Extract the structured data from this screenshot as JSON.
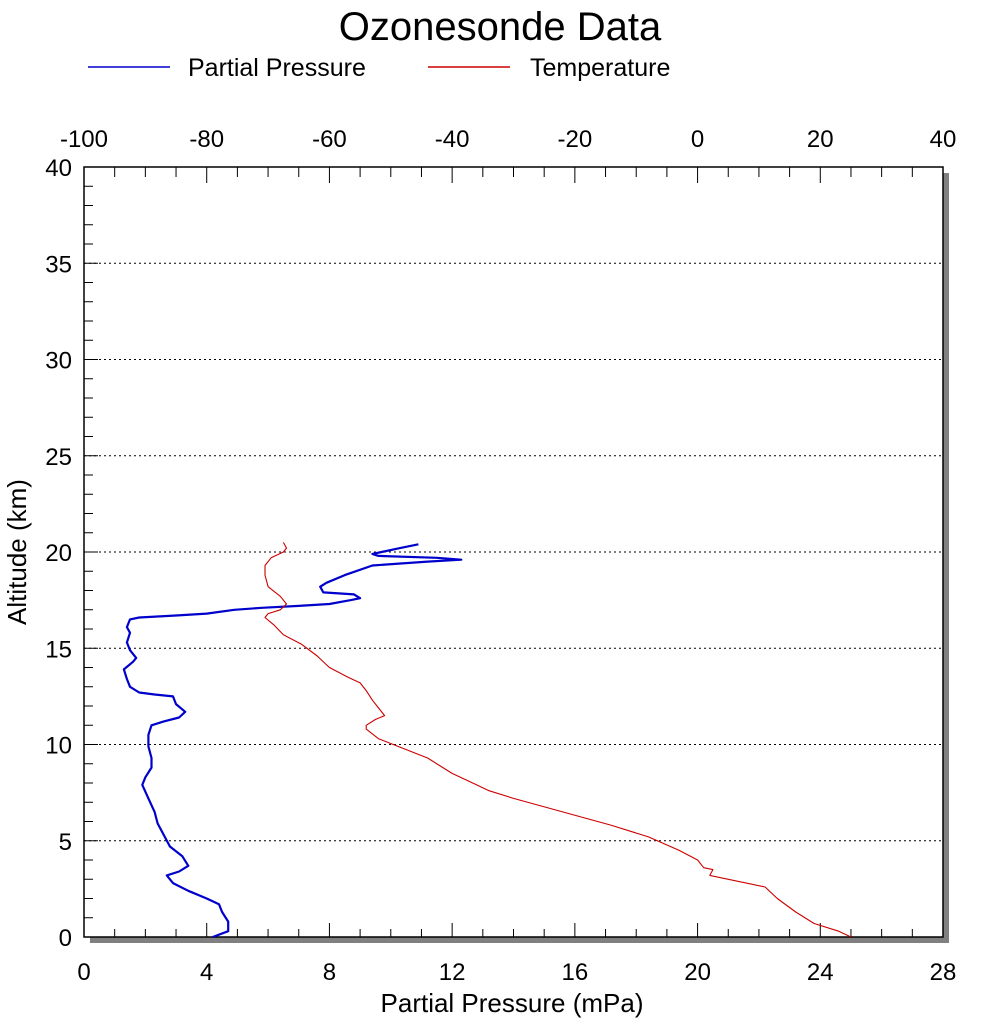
{
  "chart_data": {
    "type": "line",
    "title": "Ozonesonde Data",
    "legend": {
      "placement": "top",
      "entries": [
        {
          "label": "Partial Pressure",
          "color": "#0000cc"
        },
        {
          "label": "Temperature",
          "color": "#cc0000"
        }
      ]
    },
    "xlabel": "Partial Pressure (mPa)",
    "ylabel": "Altitude (km)",
    "x_bottom": {
      "range": [
        0,
        28
      ],
      "ticks": [
        "0",
        "4",
        "8",
        "12",
        "16",
        "20",
        "24",
        "28"
      ]
    },
    "x_top": {
      "range": [
        -100,
        40
      ],
      "ticks": [
        "-100",
        "-80",
        "-60",
        "-40",
        "-20",
        "0",
        "20",
        "40"
      ]
    },
    "y": {
      "range": [
        0,
        40
      ],
      "ticks": [
        "0",
        "5",
        "10",
        "15",
        "20",
        "25",
        "30",
        "35",
        "40"
      ]
    },
    "grid": {
      "horizontal": true,
      "style": "dotted",
      "values": [
        5,
        10,
        15,
        20,
        25,
        30,
        35
      ]
    },
    "series": [
      {
        "name": "Partial Pressure",
        "axis": "bottom",
        "color": "#0000cc",
        "points": [
          [
            4.2,
            0.0
          ],
          [
            4.7,
            0.3
          ],
          [
            4.7,
            0.8
          ],
          [
            4.5,
            1.3
          ],
          [
            4.4,
            1.7
          ],
          [
            4.0,
            2.0
          ],
          [
            3.4,
            2.4
          ],
          [
            2.9,
            2.8
          ],
          [
            2.7,
            3.2
          ],
          [
            3.1,
            3.4
          ],
          [
            3.4,
            3.7
          ],
          [
            3.2,
            4.2
          ],
          [
            2.8,
            4.7
          ],
          [
            2.6,
            5.3
          ],
          [
            2.4,
            5.9
          ],
          [
            2.3,
            6.5
          ],
          [
            2.1,
            7.2
          ],
          [
            1.9,
            7.9
          ],
          [
            2.0,
            8.3
          ],
          [
            2.2,
            8.8
          ],
          [
            2.2,
            9.3
          ],
          [
            2.1,
            9.9
          ],
          [
            2.1,
            10.5
          ],
          [
            2.2,
            11.0
          ],
          [
            2.6,
            11.2
          ],
          [
            3.1,
            11.4
          ],
          [
            3.3,
            11.7
          ],
          [
            3.0,
            12.1
          ],
          [
            2.9,
            12.5
          ],
          [
            2.3,
            12.6
          ],
          [
            1.8,
            12.7
          ],
          [
            1.5,
            13.0
          ],
          [
            1.4,
            13.4
          ],
          [
            1.3,
            13.9
          ],
          [
            1.6,
            14.3
          ],
          [
            1.7,
            14.5
          ],
          [
            1.5,
            14.9
          ],
          [
            1.4,
            15.3
          ],
          [
            1.5,
            15.8
          ],
          [
            1.4,
            16.1
          ],
          [
            1.5,
            16.5
          ],
          [
            1.8,
            16.6
          ],
          [
            3.0,
            16.7
          ],
          [
            4.0,
            16.8
          ],
          [
            4.9,
            17.0
          ],
          [
            5.8,
            17.1
          ],
          [
            7.0,
            17.2
          ],
          [
            8.0,
            17.3
          ],
          [
            8.7,
            17.5
          ],
          [
            9.0,
            17.6
          ],
          [
            8.8,
            17.8
          ],
          [
            7.8,
            17.9
          ],
          [
            7.7,
            18.2
          ],
          [
            7.9,
            18.4
          ],
          [
            8.5,
            18.8
          ],
          [
            9.4,
            19.3
          ],
          [
            11.2,
            19.5
          ],
          [
            12.3,
            19.6
          ],
          [
            11.5,
            19.7
          ],
          [
            9.6,
            19.8
          ],
          [
            9.4,
            19.9
          ],
          [
            9.7,
            20.0
          ],
          [
            10.3,
            20.2
          ],
          [
            10.9,
            20.4
          ]
        ]
      },
      {
        "name": "Temperature",
        "axis": "top",
        "color": "#cc0000",
        "points": [
          [
            25.0,
            0.0
          ],
          [
            23.0,
            0.3
          ],
          [
            19.0,
            0.7
          ],
          [
            16.0,
            1.3
          ],
          [
            13.0,
            2.0
          ],
          [
            11.0,
            2.6
          ],
          [
            2.0,
            3.2
          ],
          [
            2.5,
            3.5
          ],
          [
            1.0,
            3.6
          ],
          [
            0.0,
            4.0
          ],
          [
            -3.0,
            4.5
          ],
          [
            -8.0,
            5.2
          ],
          [
            -14.0,
            5.8
          ],
          [
            -22.0,
            6.5
          ],
          [
            -30.0,
            7.2
          ],
          [
            -34.0,
            7.6
          ],
          [
            -36.0,
            7.9
          ],
          [
            -40.0,
            8.5
          ],
          [
            -41.5,
            8.8
          ],
          [
            -44.0,
            9.3
          ],
          [
            -48.0,
            9.8
          ],
          [
            -52.0,
            10.3
          ],
          [
            -54.0,
            10.8
          ],
          [
            -54.0,
            11.0
          ],
          [
            -52.5,
            11.3
          ],
          [
            -51.0,
            11.5
          ],
          [
            -52.0,
            11.9
          ],
          [
            -53.0,
            12.3
          ],
          [
            -54.0,
            12.8
          ],
          [
            -55.0,
            13.2
          ],
          [
            -57.0,
            13.5
          ],
          [
            -60.0,
            14.0
          ],
          [
            -62.0,
            14.6
          ],
          [
            -64.5,
            15.2
          ],
          [
            -67.5,
            15.7
          ],
          [
            -69.0,
            16.2
          ],
          [
            -70.5,
            16.6
          ],
          [
            -70.0,
            16.8
          ],
          [
            -68.0,
            17.0
          ],
          [
            -67.0,
            17.3
          ],
          [
            -68.0,
            17.7
          ],
          [
            -70.0,
            18.2
          ],
          [
            -70.5,
            18.8
          ],
          [
            -70.5,
            19.3
          ],
          [
            -69.5,
            19.7
          ],
          [
            -67.5,
            20.0
          ],
          [
            -67.0,
            20.2
          ],
          [
            -67.5,
            20.5
          ]
        ]
      }
    ]
  }
}
